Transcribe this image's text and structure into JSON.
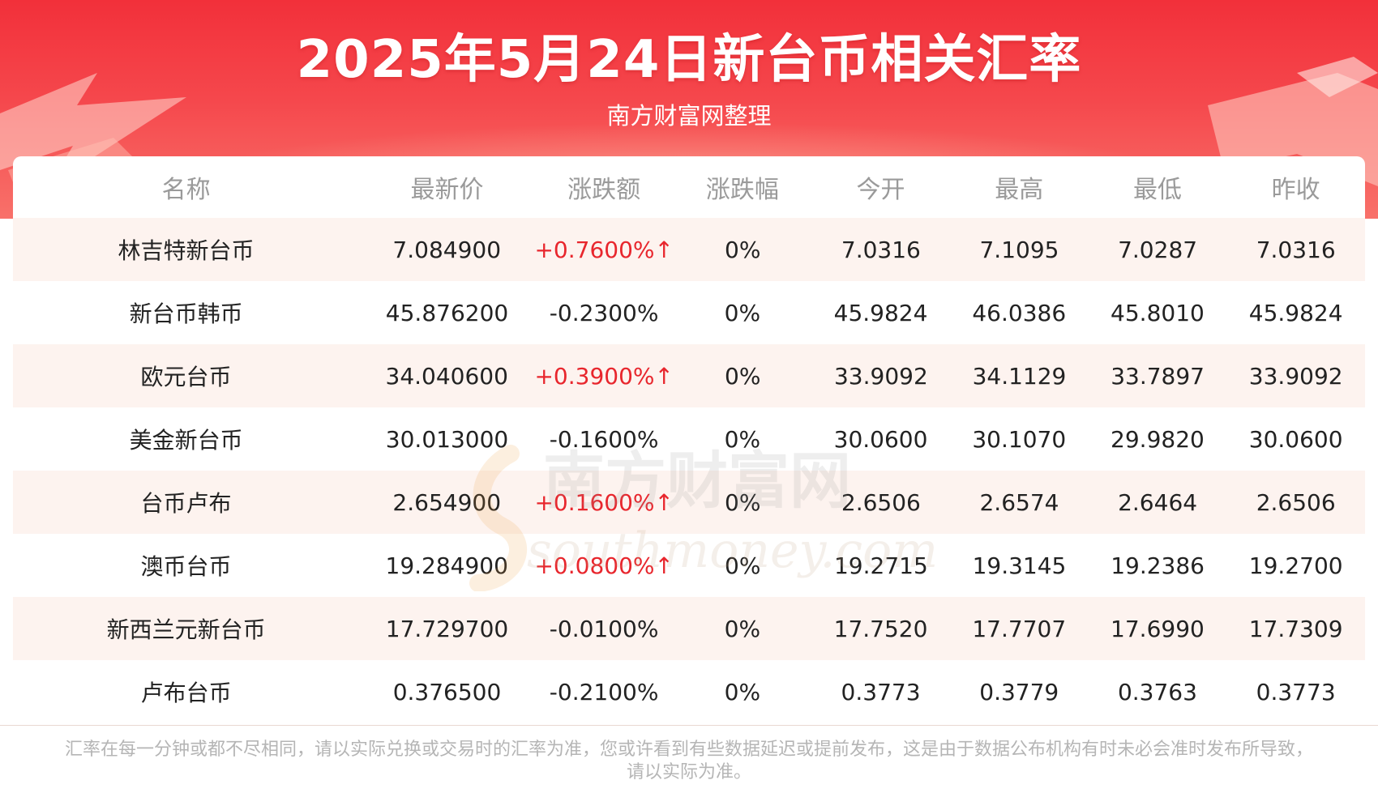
{
  "header": {
    "title": "2025年5月24日新台币相关汇率",
    "subtitle": "南方财富网整理"
  },
  "table": {
    "columns": [
      "名称",
      "最新价",
      "涨跌额",
      "涨跌幅",
      "今开",
      "最高",
      "最低",
      "昨收"
    ],
    "rows": [
      {
        "name": "林吉特新台币",
        "latest": "7.084900",
        "change": "+0.7600%↑",
        "pct": "0%",
        "open": "7.0316",
        "high": "7.1095",
        "low": "7.0287",
        "prev": "7.0316",
        "direction": "up"
      },
      {
        "name": "新台币韩币",
        "latest": "45.876200",
        "change": "-0.2300%",
        "pct": "0%",
        "open": "45.9824",
        "high": "46.0386",
        "low": "45.8010",
        "prev": "45.9824",
        "direction": "down"
      },
      {
        "name": "欧元台币",
        "latest": "34.040600",
        "change": "+0.3900%↑",
        "pct": "0%",
        "open": "33.9092",
        "high": "34.1129",
        "low": "33.7897",
        "prev": "33.9092",
        "direction": "up"
      },
      {
        "name": "美金新台币",
        "latest": "30.013000",
        "change": "-0.1600%",
        "pct": "0%",
        "open": "30.0600",
        "high": "30.1070",
        "low": "29.9820",
        "prev": "30.0600",
        "direction": "down"
      },
      {
        "name": "台币卢布",
        "latest": "2.654900",
        "change": "+0.1600%↑",
        "pct": "0%",
        "open": "2.6506",
        "high": "2.6574",
        "low": "2.6464",
        "prev": "2.6506",
        "direction": "up"
      },
      {
        "name": "澳币台币",
        "latest": "19.284900",
        "change": "+0.0800%↑",
        "pct": "0%",
        "open": "19.2715",
        "high": "19.3145",
        "low": "19.2386",
        "prev": "19.2700",
        "direction": "up"
      },
      {
        "name": "新西兰元新台币",
        "latest": "17.729700",
        "change": "-0.0100%",
        "pct": "0%",
        "open": "17.7520",
        "high": "17.7707",
        "low": "17.6990",
        "prev": "17.7309",
        "direction": "down"
      },
      {
        "name": "卢布台币",
        "latest": "0.376500",
        "change": "-0.2100%",
        "pct": "0%",
        "open": "0.3773",
        "high": "0.3779",
        "low": "0.3763",
        "prev": "0.3773",
        "direction": "down"
      }
    ]
  },
  "watermark": {
    "cn": "南方财富网",
    "en": "southmoney.com"
  },
  "footer": {
    "disclaimer_line1": "汇率在每一分钟或都不尽相同，请以实际兑换或交易时的汇率为准，您或许看到有些数据延迟或提前发布，这是由于数据公布机构有时未必会准时发布所导致，",
    "disclaimer_line2": "请以实际为准。"
  },
  "colors": {
    "banner_red": "#f2303a",
    "up_red": "#e8262d",
    "stripe": "#fdf3ef",
    "header_text": "#9a9a9a"
  }
}
